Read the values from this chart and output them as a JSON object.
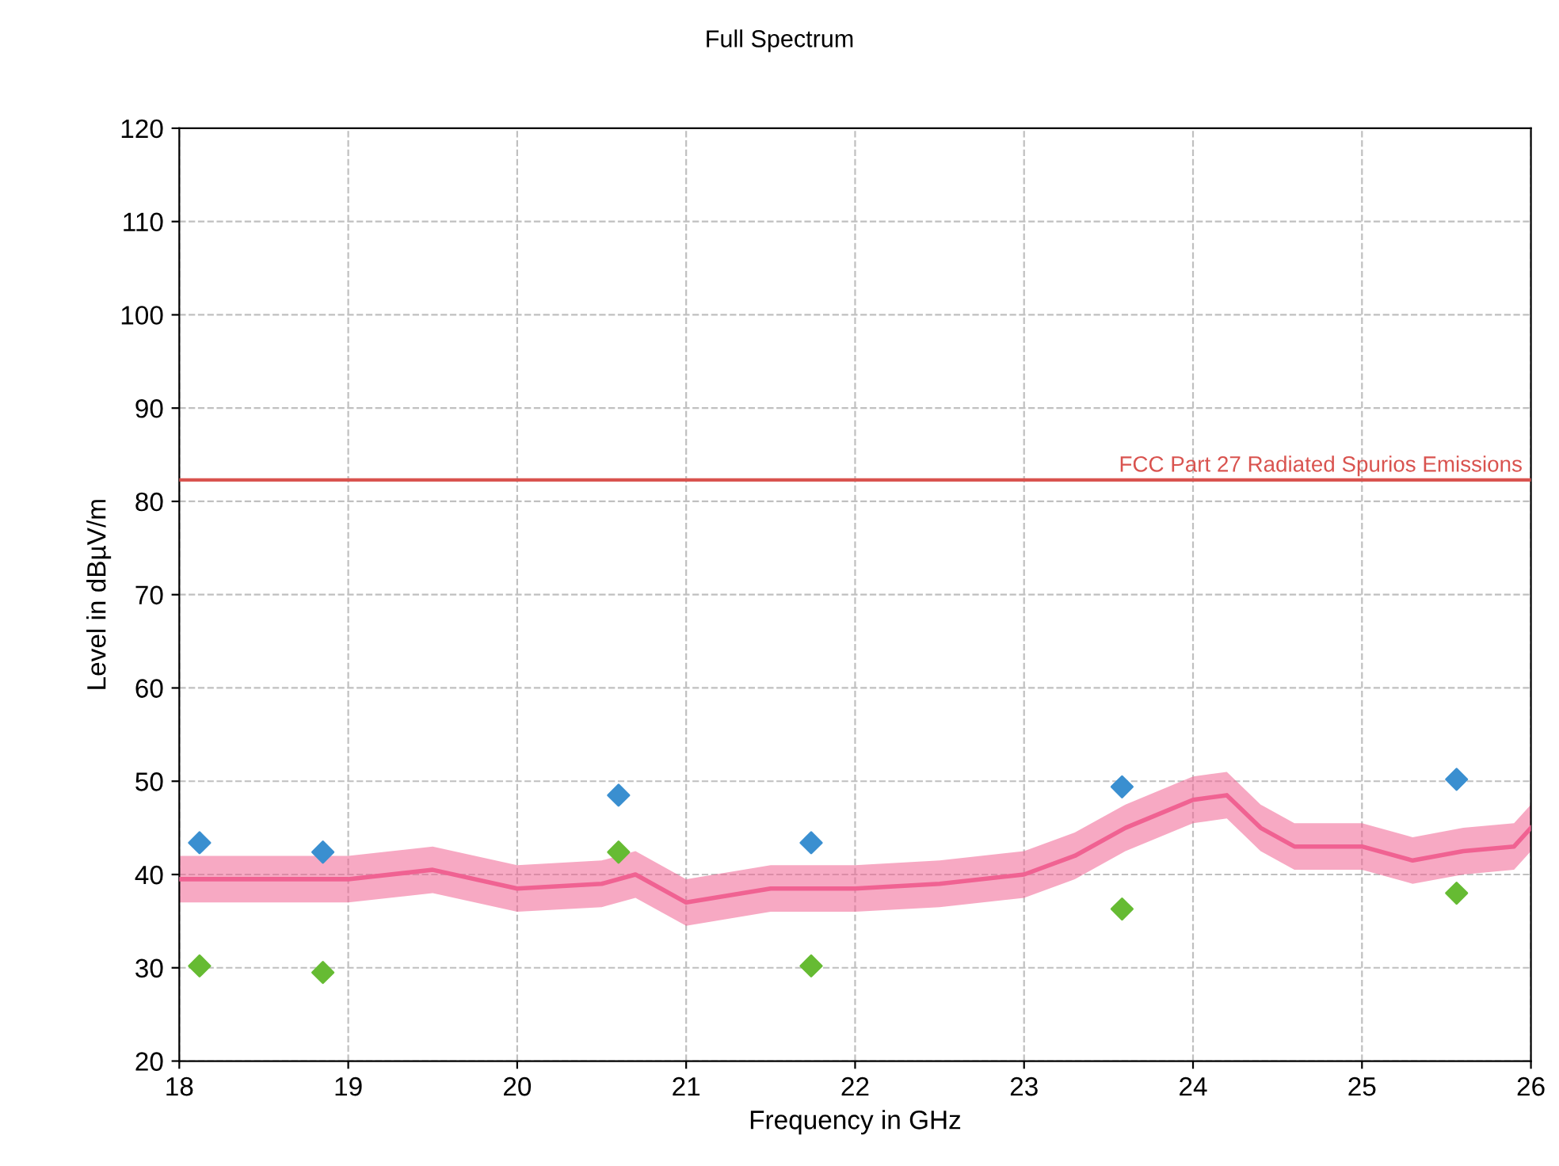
{
  "chart_data": {
    "type": "line",
    "title": "Full Spectrum",
    "xlabel": "Frequency in GHz",
    "ylabel": "Level in dBµV/m",
    "xlim": [
      18,
      26
    ],
    "xticks": [
      18,
      19,
      20,
      21,
      22,
      23,
      24,
      25,
      26
    ],
    "ylim": [
      20,
      120
    ],
    "yticks": [
      20,
      30,
      40,
      50,
      60,
      70,
      80,
      90,
      100,
      110,
      120
    ],
    "grid": true,
    "series": [
      {
        "color": "#f06292",
        "x": [
          18,
          18.5,
          19,
          19.5,
          20,
          20.5,
          20.7,
          21,
          21.5,
          22,
          22.5,
          23,
          23.3,
          23.6,
          24,
          24.2,
          24.4,
          24.6,
          25,
          25.3,
          25.6,
          25.9,
          26
        ],
        "values": [
          39.5,
          39.5,
          39.5,
          40.5,
          38.5,
          39,
          40,
          37,
          38.5,
          38.5,
          39,
          40,
          42,
          45,
          48,
          48.5,
          45,
          43,
          43,
          41.5,
          42.5,
          43,
          45
        ],
        "lower": [
          37,
          37,
          37,
          38,
          36,
          36.5,
          37.5,
          34.5,
          36,
          36,
          36.5,
          37.5,
          39.5,
          42.5,
          45.5,
          46,
          42.5,
          40.5,
          40.5,
          39,
          40,
          40.5,
          42.5
        ],
        "upper": [
          42,
          42,
          42,
          43,
          41,
          41.5,
          42.5,
          39.5,
          41,
          41,
          41.5,
          42.5,
          44.5,
          47.5,
          50.5,
          51,
          47.5,
          45.5,
          45.5,
          44,
          45,
          45.5,
          47.5
        ]
      },
      {
        "type": "scatter",
        "marker": "diamond",
        "color": "#3a8fd0",
        "x": [
          18.12,
          18.85,
          20.6,
          21.74,
          23.58,
          25.56
        ],
        "values": [
          43.4,
          42.4,
          48.5,
          43.4,
          49.4,
          50.2
        ]
      },
      {
        "type": "scatter",
        "marker": "diamond",
        "color": "#66bb33",
        "x": [
          18.12,
          18.85,
          20.6,
          21.74,
          23.58,
          25.56
        ],
        "values": [
          30.2,
          29.5,
          42.4,
          30.2,
          36.3,
          38.0
        ]
      }
    ],
    "ref_lines": [
      {
        "axis": "y",
        "value": 82.3,
        "label": "FCC Part 27 Radiated Spurios Emissions",
        "color": "#d9534f"
      }
    ]
  }
}
